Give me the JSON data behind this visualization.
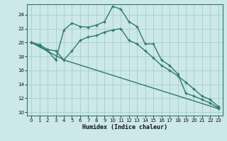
{
  "xlabel": "Humidex (Indice chaleur)",
  "bg_color": "#cce8e8",
  "grid_color": "#afd0d0",
  "line_color": "#2d7a6a",
  "xlim": [
    -0.5,
    23.5
  ],
  "ylim": [
    9.5,
    25.5
  ],
  "xticks": [
    0,
    1,
    2,
    3,
    4,
    5,
    6,
    7,
    8,
    9,
    10,
    11,
    12,
    13,
    14,
    15,
    16,
    17,
    18,
    19,
    20,
    21,
    22,
    23
  ],
  "yticks": [
    10,
    12,
    14,
    16,
    18,
    20,
    22,
    24
  ],
  "line1_x": [
    0,
    1,
    2,
    3,
    4,
    5,
    6,
    7,
    8,
    9,
    10,
    11,
    12,
    13,
    14,
    15,
    16,
    17,
    18,
    19,
    20,
    21,
    22,
    23
  ],
  "line1_y": [
    20.0,
    19.5,
    18.8,
    17.5,
    21.8,
    22.8,
    22.3,
    22.2,
    22.5,
    23.0,
    25.2,
    24.8,
    23.0,
    22.3,
    19.8,
    19.8,
    17.5,
    16.7,
    15.5,
    12.7,
    12.3,
    11.8,
    11.3,
    10.6
  ],
  "line2_x": [
    0,
    1,
    2,
    3,
    4,
    5,
    6,
    7,
    8,
    9,
    10,
    11,
    12,
    13,
    14,
    15,
    16,
    17,
    18,
    19,
    20,
    21,
    22,
    23
  ],
  "line2_y": [
    20.0,
    19.7,
    19.0,
    18.8,
    17.5,
    18.8,
    20.3,
    20.8,
    21.0,
    21.5,
    21.8,
    22.0,
    20.3,
    19.8,
    18.8,
    17.8,
    16.7,
    16.0,
    15.2,
    14.3,
    13.3,
    12.3,
    11.8,
    10.8
  ],
  "line3_x": [
    0,
    4,
    23
  ],
  "line3_y": [
    20.0,
    17.5,
    10.5
  ]
}
